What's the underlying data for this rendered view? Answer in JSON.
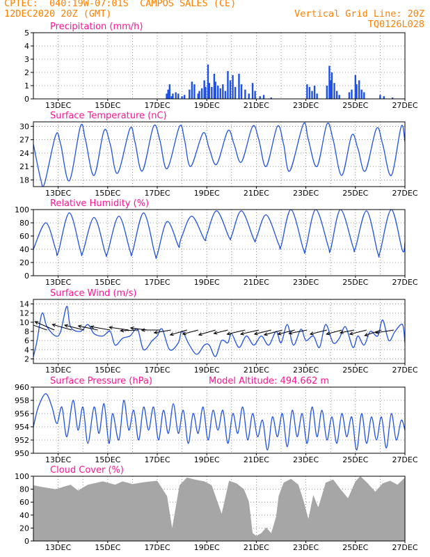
{
  "header": {
    "line1": "CPTEC:  040:19W-07:01S  CAMPOS SALES (CE)",
    "line2": "12DEC2020 20Z (GMT)",
    "grid_note": "Vertical Grid Line: 20Z",
    "code": "TQ0126L028"
  },
  "x_ticks": [
    "13DEC",
    "15DEC",
    "17DEC",
    "19DEC",
    "21DEC",
    "23DEC",
    "25DEC",
    "27DEC"
  ],
  "chart_data": [
    {
      "type": "bar",
      "title": "Precipitation (mm/h)",
      "ylim": [
        0,
        5
      ],
      "yticks": [
        "0",
        "1",
        "2",
        "3",
        "4",
        "5"
      ],
      "color": "#1e50e6",
      "bars": [
        {
          "day": 17.38,
          "v": 0.4
        },
        {
          "day": 17.44,
          "v": 0.7
        },
        {
          "day": 17.5,
          "v": 1.1
        },
        {
          "day": 17.58,
          "v": 0.2
        },
        {
          "day": 17.63,
          "v": 0.4
        },
        {
          "day": 17.75,
          "v": 0.5
        },
        {
          "day": 17.85,
          "v": 0.4
        },
        {
          "day": 18.0,
          "v": 0.2
        },
        {
          "day": 18.1,
          "v": 0.3
        },
        {
          "day": 18.3,
          "v": 0.7
        },
        {
          "day": 18.4,
          "v": 1.3
        },
        {
          "day": 18.5,
          "v": 1.1
        },
        {
          "day": 18.65,
          "v": 0.4
        },
        {
          "day": 18.7,
          "v": 0.6
        },
        {
          "day": 18.8,
          "v": 0.8
        },
        {
          "day": 18.9,
          "v": 1.4
        },
        {
          "day": 18.95,
          "v": 0.9
        },
        {
          "day": 19.05,
          "v": 2.6
        },
        {
          "day": 19.1,
          "v": 1.2
        },
        {
          "day": 19.2,
          "v": 0.9
        },
        {
          "day": 19.3,
          "v": 1.9
        },
        {
          "day": 19.35,
          "v": 1.3
        },
        {
          "day": 19.45,
          "v": 1.0
        },
        {
          "day": 19.55,
          "v": 0.8
        },
        {
          "day": 19.65,
          "v": 1.1
        },
        {
          "day": 19.75,
          "v": 0.6
        },
        {
          "day": 19.85,
          "v": 2.1
        },
        {
          "day": 19.95,
          "v": 1.4
        },
        {
          "day": 20.05,
          "v": 1.8
        },
        {
          "day": 20.15,
          "v": 0.9
        },
        {
          "day": 20.3,
          "v": 1.9
        },
        {
          "day": 20.4,
          "v": 1.1
        },
        {
          "day": 20.55,
          "v": 0.7
        },
        {
          "day": 20.7,
          "v": 0.4
        },
        {
          "day": 20.85,
          "v": 1.2
        },
        {
          "day": 20.95,
          "v": 0.6
        },
        {
          "day": 21.15,
          "v": 0.2
        },
        {
          "day": 21.3,
          "v": 0.3
        },
        {
          "day": 21.6,
          "v": 0.1
        },
        {
          "day": 23.05,
          "v": 1.1
        },
        {
          "day": 23.15,
          "v": 0.9
        },
        {
          "day": 23.25,
          "v": 0.6
        },
        {
          "day": 23.35,
          "v": 1.0
        },
        {
          "day": 23.45,
          "v": 0.4
        },
        {
          "day": 23.85,
          "v": 1.0
        },
        {
          "day": 23.95,
          "v": 2.5
        },
        {
          "day": 24.0,
          "v": 1.4
        },
        {
          "day": 24.05,
          "v": 2.0
        },
        {
          "day": 24.15,
          "v": 1.2
        },
        {
          "day": 24.25,
          "v": 0.6
        },
        {
          "day": 24.35,
          "v": 0.3
        },
        {
          "day": 24.75,
          "v": 0.5
        },
        {
          "day": 24.85,
          "v": 0.7
        },
        {
          "day": 25.0,
          "v": 1.8
        },
        {
          "day": 25.05,
          "v": 1.1
        },
        {
          "day": 25.15,
          "v": 1.4
        },
        {
          "day": 25.25,
          "v": 0.7
        },
        {
          "day": 25.35,
          "v": 0.5
        },
        {
          "day": 26.0,
          "v": 0.3
        },
        {
          "day": 26.15,
          "v": 0.2
        },
        {
          "day": 26.5,
          "v": 0.1
        }
      ]
    },
    {
      "type": "line",
      "title": "Surface Temperature (nC)",
      "ylim": [
        16.5,
        31
      ],
      "yticks": [
        "18",
        "21",
        "24",
        "27",
        "30"
      ],
      "ytick_values": [
        18,
        21,
        24,
        27,
        30
      ],
      "color": "#1e50e6",
      "x": [
        12.0,
        12.3,
        12.45,
        12.9,
        13.1,
        13.45,
        13.9,
        14.1,
        14.45,
        14.85,
        15.1,
        15.4,
        15.9,
        16.1,
        16.4,
        16.85,
        17.1,
        17.4,
        17.9,
        18.1,
        18.35,
        18.85,
        19.1,
        19.4,
        19.85,
        20.1,
        20.4,
        20.85,
        21.1,
        21.4,
        21.85,
        22.1,
        22.35,
        22.9,
        23.1,
        23.45,
        23.85,
        24.1,
        24.45,
        24.85,
        25.1,
        25.4,
        25.85,
        26.1,
        26.45,
        26.85,
        27.0
      ],
      "y": [
        26,
        18,
        17.2,
        28,
        26,
        17.8,
        30,
        27,
        19,
        29,
        26,
        19.5,
        29.5,
        26.5,
        20,
        30,
        27,
        20.5,
        30,
        27,
        21,
        28.5,
        25,
        21.5,
        29,
        26,
        22,
        30,
        27,
        21,
        30,
        26,
        20,
        30.5,
        27,
        21,
        30.5,
        27,
        19,
        28,
        25,
        20,
        29.5,
        26,
        19,
        30,
        26.5
      ]
    },
    {
      "type": "line",
      "title": "Relative Humidity (%)",
      "ylim": [
        0,
        100
      ],
      "yticks": [
        "0",
        "20",
        "40",
        "60",
        "80",
        "100"
      ],
      "ytick_values": [
        0,
        20,
        40,
        60,
        80,
        100
      ],
      "color": "#1e50e6",
      "x": [
        12.0,
        12.5,
        12.9,
        13.0,
        13.45,
        13.9,
        14.0,
        14.45,
        14.9,
        15.0,
        15.45,
        15.9,
        16.0,
        16.45,
        16.9,
        17.0,
        17.4,
        17.85,
        17.9,
        18.0,
        18.4,
        18.9,
        19.0,
        19.4,
        19.9,
        20.0,
        20.4,
        20.9,
        21.0,
        21.4,
        21.9,
        22.0,
        22.4,
        22.9,
        23.0,
        23.4,
        23.9,
        24.0,
        24.4,
        24.9,
        25.0,
        25.45,
        25.9,
        26.0,
        26.45,
        26.9,
        27.0
      ],
      "y": [
        40,
        80,
        40,
        35,
        95,
        38,
        36,
        88,
        35,
        36,
        90,
        38,
        36,
        95,
        34,
        32,
        82,
        45,
        48,
        60,
        90,
        55,
        62,
        98,
        58,
        60,
        98,
        55,
        57,
        92,
        48,
        45,
        100,
        40,
        42,
        100,
        45,
        40,
        100,
        44,
        42,
        98,
        35,
        37,
        100,
        38,
        50
      ]
    },
    {
      "type": "line",
      "title": "Surface Wind (m/s)",
      "ylim": [
        1,
        15
      ],
      "yticks": [
        "2",
        "4",
        "6",
        "8",
        "10",
        "12",
        "14"
      ],
      "ytick_values": [
        2,
        4,
        6,
        8,
        10,
        12,
        14
      ],
      "color": "#1e50e6",
      "x": [
        12.0,
        12.15,
        12.35,
        12.55,
        12.9,
        13.1,
        13.35,
        13.5,
        13.9,
        14.2,
        14.45,
        14.8,
        15.1,
        15.3,
        15.6,
        15.9,
        16.2,
        16.45,
        16.8,
        17.0,
        17.2,
        17.5,
        17.85,
        18.0,
        18.3,
        18.6,
        18.9,
        19.1,
        19.35,
        19.6,
        19.85,
        20.0,
        20.3,
        20.6,
        20.9,
        21.2,
        21.5,
        21.8,
        22.0,
        22.25,
        22.5,
        22.8,
        23.0,
        23.3,
        23.55,
        23.8,
        24.1,
        24.35,
        24.6,
        24.9,
        25.1,
        25.35,
        25.6,
        25.9,
        26.1,
        26.35,
        26.6,
        26.9,
        27.0
      ],
      "y": [
        2.5,
        6,
        12,
        9,
        7,
        8,
        13.5,
        9,
        8,
        9.5,
        7.5,
        7,
        8,
        5,
        6.5,
        7,
        8.5,
        4,
        6,
        7,
        8.5,
        4,
        5.5,
        8,
        5,
        3,
        5,
        5,
        2.5,
        6,
        5.5,
        7.5,
        4.5,
        7,
        5,
        7,
        5,
        8,
        5.5,
        9.5,
        5,
        8.5,
        6,
        7,
        4.5,
        9.5,
        5.5,
        6.5,
        9,
        4.5,
        7,
        5,
        8,
        7,
        10.5,
        6,
        8,
        9.5,
        5.5
      ],
      "arrows": [
        {
          "day": 12.55,
          "dx": -28,
          "dy": -10
        },
        {
          "day": 12.85,
          "dx": -28,
          "dy": -12
        },
        {
          "day": 13.55,
          "dx": -28,
          "dy": -8
        },
        {
          "day": 14.05,
          "dx": -28,
          "dy": -7
        },
        {
          "day": 14.6,
          "dx": -28,
          "dy": -6
        },
        {
          "day": 15.1,
          "dx": -28,
          "dy": -5
        },
        {
          "day": 15.85,
          "dx": -28,
          "dy": -4
        },
        {
          "day": 16.25,
          "dx": -26,
          "dy": 1
        },
        {
          "day": 16.6,
          "dx": -24,
          "dy": -3
        },
        {
          "day": 17.1,
          "dx": -26,
          "dy": 0
        },
        {
          "day": 17.55,
          "dx": -24,
          "dy": 4
        },
        {
          "day": 18.2,
          "dx": -24,
          "dy": 7
        },
        {
          "day": 18.65,
          "dx": -22,
          "dy": 6
        },
        {
          "day": 19.35,
          "dx": -24,
          "dy": 7
        },
        {
          "day": 19.85,
          "dx": -20,
          "dy": 5
        },
        {
          "day": 20.55,
          "dx": -26,
          "dy": 6
        },
        {
          "day": 21.1,
          "dx": -26,
          "dy": 6
        },
        {
          "day": 21.6,
          "dx": -24,
          "dy": 6
        },
        {
          "day": 22.05,
          "dx": -26,
          "dy": 7
        },
        {
          "day": 22.55,
          "dx": -24,
          "dy": 6
        },
        {
          "day": 23.05,
          "dx": -26,
          "dy": 5
        },
        {
          "day": 23.85,
          "dx": -24,
          "dy": 6
        },
        {
          "day": 24.45,
          "dx": -22,
          "dy": 6
        },
        {
          "day": 24.95,
          "dx": -20,
          "dy": 4
        },
        {
          "day": 25.45,
          "dx": -24,
          "dy": 6
        },
        {
          "day": 26.05,
          "dx": -24,
          "dy": 8
        },
        {
          "day": 26.55,
          "dx": -26,
          "dy": 4
        }
      ]
    },
    {
      "type": "line",
      "title": "Surface Pressure (hPa)",
      "subtitle": "Model Altitude: 494.662  m",
      "ylim": [
        950,
        960
      ],
      "yticks": [
        "950",
        "952",
        "954",
        "956",
        "958",
        "960"
      ],
      "ytick_values": [
        950,
        952,
        954,
        956,
        958,
        960
      ],
      "color": "#1e50e6",
      "x": [
        12.0,
        12.2,
        12.5,
        12.75,
        12.95,
        13.15,
        13.35,
        13.6,
        13.8,
        14.0,
        14.2,
        14.45,
        14.65,
        14.85,
        15.05,
        15.2,
        15.45,
        15.65,
        15.85,
        16.05,
        16.25,
        16.45,
        16.65,
        16.85,
        17.05,
        17.25,
        17.45,
        17.65,
        17.85,
        18.05,
        18.25,
        18.45,
        18.65,
        18.85,
        19.05,
        19.25,
        19.45,
        19.65,
        19.85,
        20.05,
        20.25,
        20.45,
        20.65,
        20.85,
        21.05,
        21.25,
        21.45,
        21.65,
        21.85,
        22.05,
        22.25,
        22.45,
        22.65,
        22.85,
        23.05,
        23.25,
        23.45,
        23.65,
        23.85,
        24.05,
        24.25,
        24.45,
        24.65,
        24.85,
        25.05,
        25.25,
        25.45,
        25.65,
        25.85,
        26.05,
        26.25,
        26.45,
        26.65,
        26.85,
        27.0
      ],
      "y": [
        954,
        957,
        959,
        957,
        954.5,
        957,
        952.5,
        958,
        953.5,
        957,
        951.5,
        957,
        953,
        957.5,
        951.5,
        956,
        952,
        958,
        953.5,
        956.5,
        952,
        957,
        953.5,
        957,
        952,
        956.5,
        953,
        957.5,
        953,
        956.5,
        951.5,
        956,
        953,
        957,
        952,
        956.5,
        953.5,
        956.5,
        951.5,
        956,
        953,
        957,
        952,
        956,
        952.5,
        955,
        950.5,
        955.5,
        952.5,
        956,
        951,
        956.5,
        952.5,
        956,
        951.5,
        957,
        952.5,
        956.5,
        952,
        955.5,
        951.5,
        956,
        952.5,
        955.5,
        950.5,
        956,
        951.5,
        955.5,
        952,
        955.5,
        950.8,
        956,
        952,
        955,
        953.5
      ]
    },
    {
      "type": "bar",
      "title": "Cloud Cover (%)",
      "ylim": [
        0,
        100
      ],
      "yticks": [
        "0",
        "20",
        "40",
        "60",
        "80",
        "100"
      ],
      "ytick_values": [
        0,
        20,
        40,
        60,
        80,
        100
      ],
      "color": "#a6a6a6",
      "x": [
        12.0,
        12.4,
        12.9,
        13.5,
        13.8,
        14.2,
        14.8,
        15.3,
        15.6,
        16.0,
        16.5,
        17.0,
        17.4,
        17.6,
        17.9,
        18.2,
        18.5,
        18.9,
        19.2,
        19.6,
        19.9,
        20.2,
        20.5,
        20.7,
        20.85,
        21.0,
        21.2,
        21.4,
        21.6,
        21.8,
        21.9,
        22.1,
        22.4,
        22.7,
        22.9,
        23.1,
        23.3,
        23.5,
        23.8,
        24.1,
        24.4,
        24.7,
        25.0,
        25.2,
        25.5,
        25.8,
        26.1,
        26.4,
        26.7,
        27.0
      ],
      "y": [
        90,
        86,
        82,
        88,
        78,
        86,
        90,
        84,
        88,
        92,
        94,
        95,
        70,
        20,
        85,
        96,
        92,
        88,
        90,
        45,
        95,
        90,
        80,
        60,
        10,
        5,
        8,
        25,
        15,
        40,
        70,
        90,
        95,
        85,
        60,
        30,
        75,
        55,
        92,
        96,
        80,
        65,
        90,
        97,
        85,
        80,
        92,
        95,
        88,
        98
      ]
    }
  ]
}
